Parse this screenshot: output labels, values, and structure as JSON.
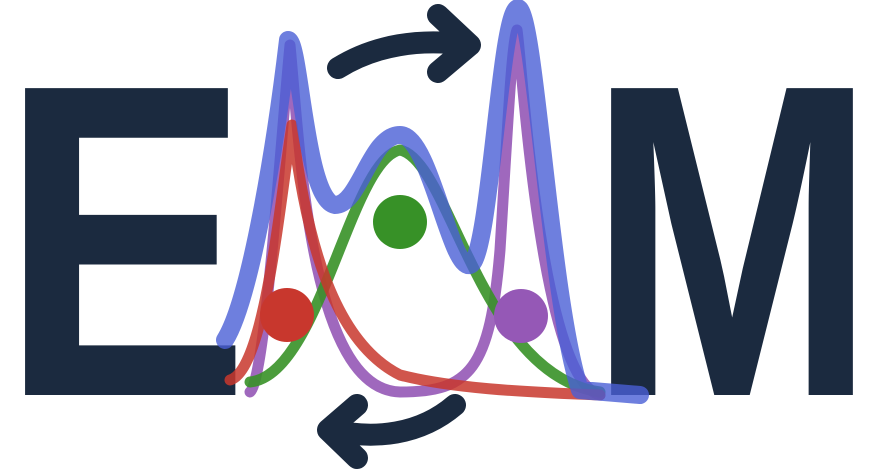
{
  "logo": {
    "left_letter": "E",
    "right_letter": "M"
  }
}
